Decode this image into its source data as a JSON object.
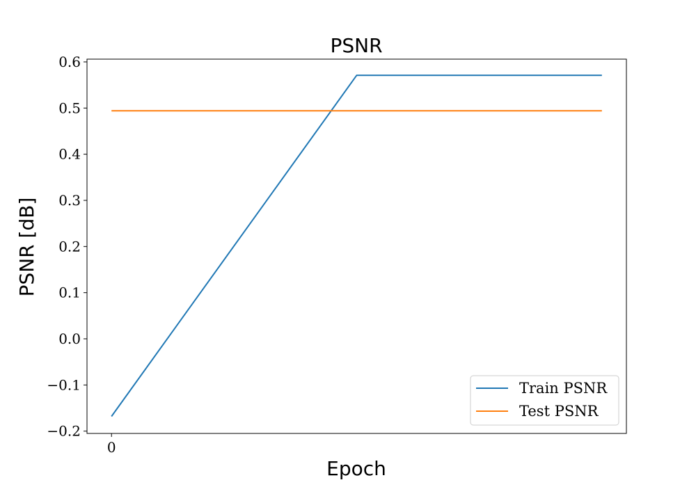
{
  "chart_data": {
    "type": "line",
    "title": "PSNR",
    "xlabel": "Epoch",
    "ylabel": "PSNR [dB]",
    "x_ticks": [
      0
    ],
    "x_tick_labels": [
      "0"
    ],
    "y_ticks": [
      -0.2,
      -0.1,
      0.0,
      0.1,
      0.2,
      0.3,
      0.4,
      0.5,
      0.6
    ],
    "y_tick_labels": [
      "−0.2",
      "−0.1",
      "0.0",
      "0.1",
      "0.2",
      "0.3",
      "0.4",
      "0.5",
      "0.6"
    ],
    "xlim": [
      -0.05,
      1.05
    ],
    "ylim": [
      -0.205,
      0.606
    ],
    "grid": false,
    "legend_position": "lower-right",
    "series": [
      {
        "name": "Train PSNR",
        "color": "#1f77b4",
        "x": [
          0,
          0.5,
          1
        ],
        "y": [
          -0.168,
          0.571,
          0.571
        ]
      },
      {
        "name": "Test PSNR",
        "color": "#ff7f0e",
        "x": [
          0,
          1
        ],
        "y": [
          0.494,
          0.494
        ]
      }
    ]
  }
}
